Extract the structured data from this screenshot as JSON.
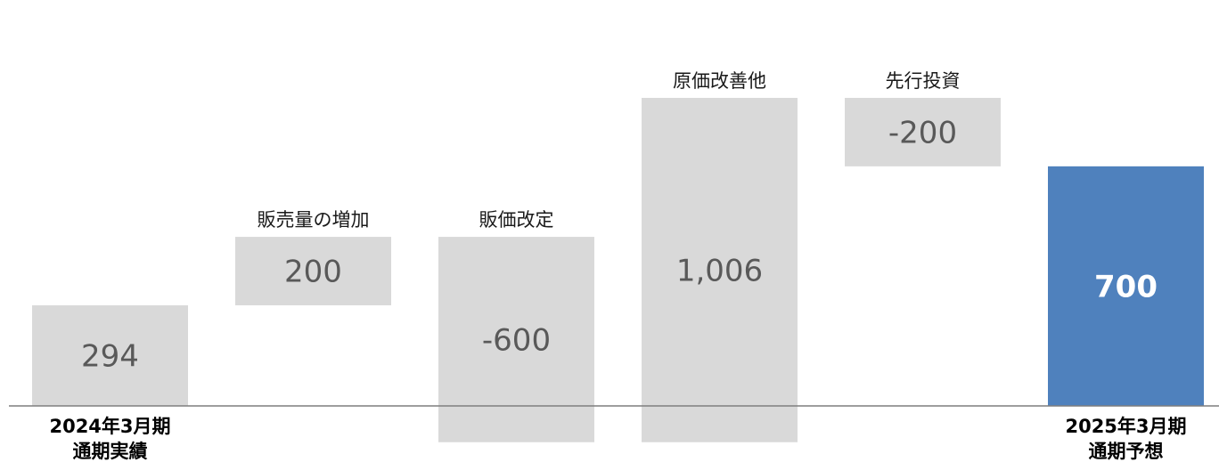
{
  "chart_data": {
    "type": "bar",
    "subtype": "waterfall",
    "unit": "",
    "categories": [
      [
        "2024年3月期",
        "通期実績"
      ],
      [
        "販売量の増加"
      ],
      [
        "販価改定"
      ],
      [
        "原価改善他"
      ],
      [
        "先行投資"
      ],
      [
        "2025年3月期",
        "通期予想"
      ]
    ],
    "values": [
      294,
      200,
      -600,
      1006,
      -200,
      700
    ],
    "value_labels": [
      "294",
      "200",
      "-600",
      "1,006",
      "-200",
      "700"
    ],
    "bar_kinds": [
      "total",
      "delta",
      "delta",
      "delta",
      "delta",
      "total"
    ],
    "colors": {
      "delta_and_start": "#d9d9d9",
      "final_total": "#4f81bd",
      "baseline": "#7f7f7f"
    },
    "title": "",
    "xlabel": "",
    "ylabel": "",
    "ylim": [
      -600,
      1100
    ],
    "grid": false,
    "legend": "none"
  }
}
